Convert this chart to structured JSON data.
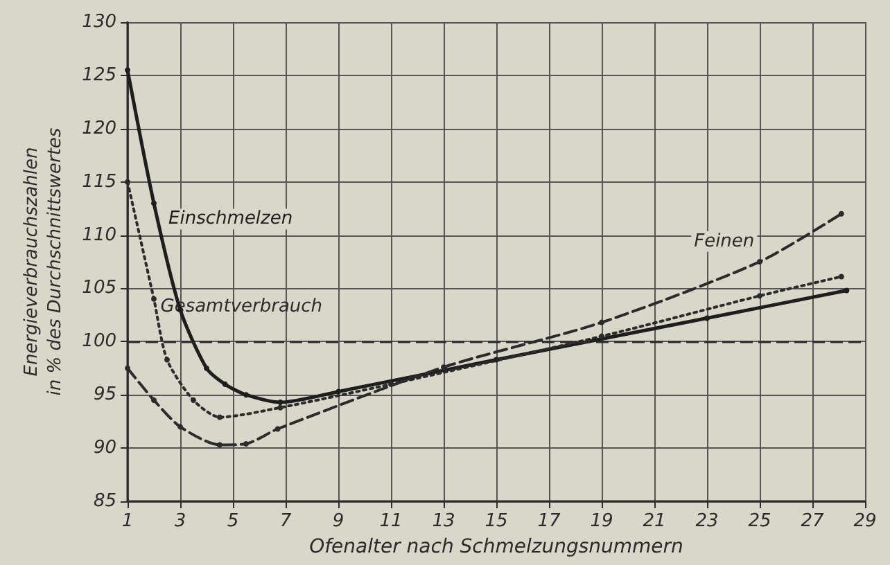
{
  "chart_data": {
    "type": "line",
    "xlabel": "Ofenalter nach Schmelzungsnummern",
    "ylabel": "Energieverbrauchszahlen\nin % des Durchschnittswertes",
    "xlim": [
      1,
      29
    ],
    "xticks": [
      1,
      3,
      5,
      7,
      9,
      11,
      13,
      15,
      17,
      19,
      21,
      23,
      25,
      27,
      29
    ],
    "ylim": [
      85,
      130
    ],
    "yticks": [
      85,
      90,
      95,
      100,
      105,
      110,
      115,
      120,
      125,
      130
    ],
    "grid": true,
    "legend": false,
    "marker": "circle",
    "ref_lines": [
      {
        "axis": "y",
        "value": 100,
        "line_style": "dashed",
        "color": "#2b2b2b"
      }
    ],
    "series": [
      {
        "name": "Einschmelzen",
        "color": "#1e1e1e",
        "line_style": "solid",
        "x": [
          1,
          2,
          3,
          4,
          4.7,
          5.5,
          6.8,
          9,
          15,
          23,
          28.3
        ],
        "values": [
          125.5,
          113,
          103,
          97.5,
          96,
          95,
          94.3,
          95.3,
          98.3,
          102.2,
          104.8
        ]
      },
      {
        "name": "Gesamtverbrauch",
        "color": "#2b2b2b",
        "line_style": "dotted",
        "x": [
          1,
          2,
          2.5,
          3.5,
          4.5,
          6.8,
          11,
          19,
          25,
          28.1
        ],
        "values": [
          115,
          104,
          98.3,
          94.5,
          92.9,
          93.8,
          96,
          100.5,
          104.3,
          106.1
        ]
      },
      {
        "name": "Feinen",
        "color": "#2b2b2b",
        "line_style": "dashed",
        "x": [
          1,
          2,
          3,
          4.5,
          5.5,
          6.7,
          13,
          19,
          25,
          28.1
        ],
        "values": [
          97.5,
          94.5,
          92,
          90.3,
          90.4,
          91.8,
          97.6,
          101.8,
          107.5,
          112
        ]
      }
    ]
  }
}
